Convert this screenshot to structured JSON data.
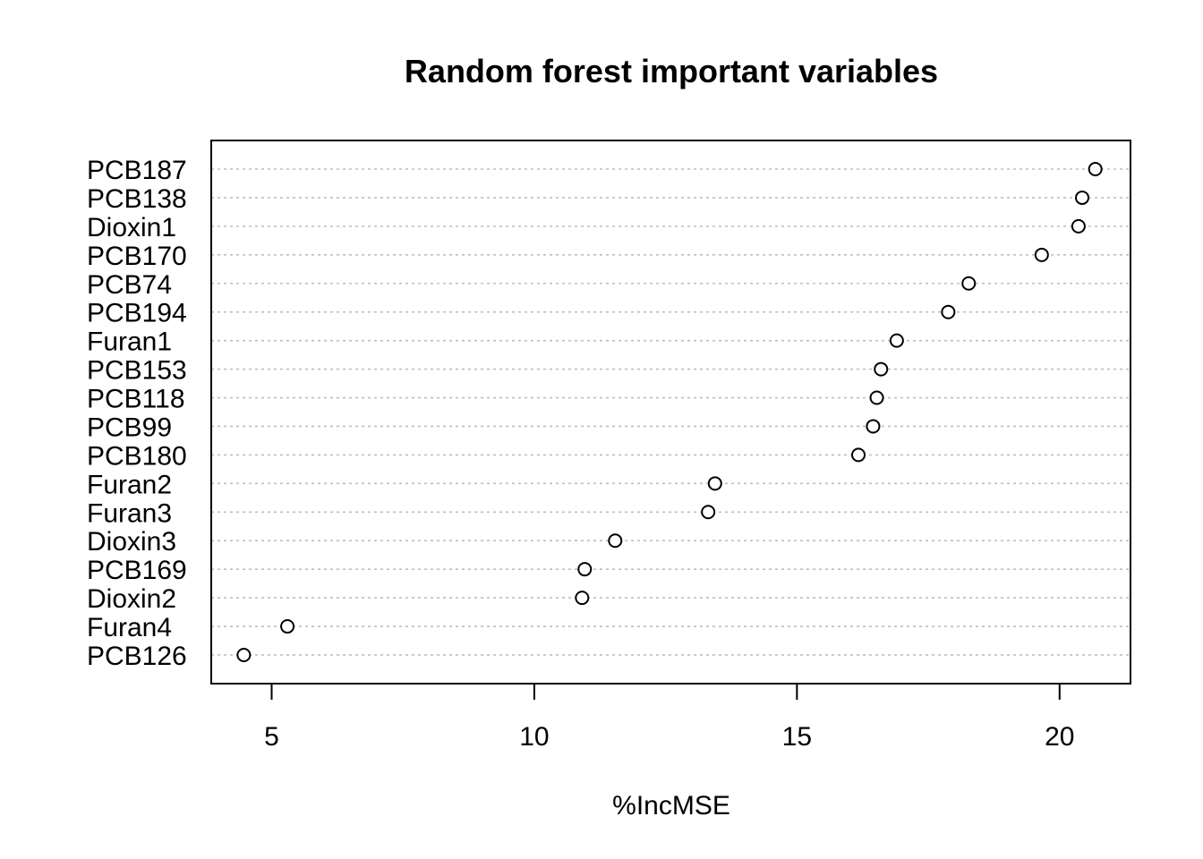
{
  "chart_data": {
    "type": "scatter",
    "title": "Random forest important variables",
    "xlabel": "%IncMSE",
    "ylabel": "",
    "xlim": [
      3.85,
      21.35
    ],
    "xticks": [
      5,
      10,
      15,
      20
    ],
    "xtick_labels": [
      "5",
      "10",
      "15",
      "20"
    ],
    "grid": "horizontal dotted",
    "legend": "none",
    "categories": [
      "PCB187",
      "PCB138",
      "Dioxin1",
      "PCB170",
      "PCB74",
      "PCB194",
      "Furan1",
      "PCB153",
      "PCB118",
      "PCB99",
      "PCB180",
      "Furan2",
      "Furan3",
      "Dioxin3",
      "PCB169",
      "Dioxin2",
      "Furan4",
      "PCB126"
    ],
    "values": [
      20.68,
      20.43,
      20.36,
      19.66,
      18.27,
      17.88,
      16.9,
      16.6,
      16.52,
      16.45,
      16.17,
      13.44,
      13.31,
      11.54,
      10.96,
      10.91,
      5.3,
      4.47
    ],
    "colors": {
      "points": "#000000",
      "grid": "#bebebe",
      "frame": "#000000"
    }
  }
}
